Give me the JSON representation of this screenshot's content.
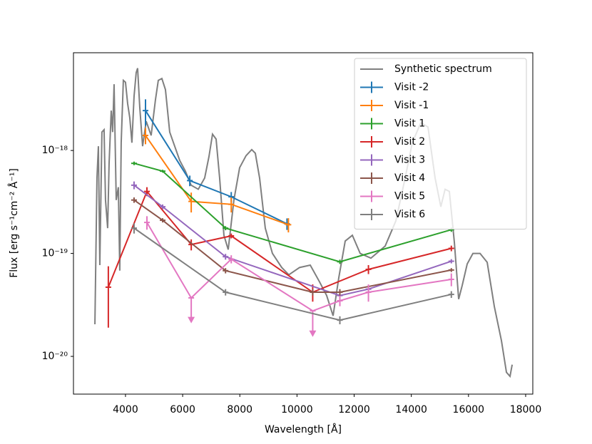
{
  "chart_data": {
    "type": "line",
    "x_label": "Wavelength [Å]",
    "y_label": "Flux [erg s⁻¹cm⁻² Å⁻¹]",
    "xlim": [
      2180,
      18250
    ],
    "ylim": [
      4.3e-21,
      8.9e-18
    ],
    "log_y": true,
    "xticks": [
      4000,
      6000,
      8000,
      10000,
      12000,
      14000,
      16000,
      18000
    ],
    "yticks": [
      {
        "value": 1e-20,
        "label": "10⁻²⁰"
      },
      {
        "value": 1e-19,
        "label": "10⁻¹⁹"
      },
      {
        "value": 1e-18,
        "label": "10⁻¹⁸"
      }
    ],
    "legend_loc": "upper right",
    "spectrum": {
      "name": "Synthetic spectrum",
      "color": "#7f7f7f",
      "x": [
        2930,
        3002,
        3052,
        3102,
        3176,
        3251,
        3301,
        3376,
        3426,
        3501,
        3551,
        3601,
        3676,
        3750,
        3800,
        3850,
        3925,
        4000,
        4075,
        4150,
        4225,
        4300,
        4374,
        4424,
        4499,
        4599,
        4724,
        4898,
        5048,
        5148,
        5273,
        5398,
        5547,
        5722,
        5897,
        6096,
        6296,
        6546,
        6770,
        6920,
        7045,
        7170,
        7294,
        7444,
        7594,
        7793,
        7993,
        8218,
        8417,
        8542,
        8692,
        8891,
        9141,
        9466,
        9715,
        10090,
        10464,
        10788,
        11038,
        11263,
        11462,
        11687,
        11937,
        12211,
        12586,
        13085,
        13459,
        13784,
        14034,
        14333,
        14583,
        14832,
        15032,
        15182,
        15331,
        15506,
        15656,
        15781,
        15955,
        16155,
        16405,
        16654,
        16904,
        17153,
        17328,
        17453,
        17528
      ],
      "values": [
        2.05e-20,
        5.4e-19,
        1.1e-18,
        7.7e-20,
        1.51e-18,
        1.59e-18,
        3.3e-19,
        1.76e-19,
        7.4e-19,
        2.44e-18,
        1.51e-18,
        4.4e-18,
        3.3e-19,
        4.4e-19,
        6.8e-20,
        1.19e-18,
        4.8e-18,
        4.6e-18,
        2.86e-18,
        2.08e-18,
        1.19e-18,
        3.36e-18,
        5.7e-18,
        6.3e-18,
        2.64e-18,
        1.1e-18,
        1.92e-18,
        1.4e-18,
        3.1e-18,
        4.8e-18,
        5e-18,
        3.9e-18,
        1.51e-18,
        1.1e-18,
        8e-19,
        6.3e-19,
        4.6e-19,
        4.2e-19,
        5.4e-19,
        8.7e-19,
        1.44e-18,
        1.29e-18,
        5.4e-19,
        1.5e-19,
        1.09e-19,
        3.3e-19,
        6.8e-19,
        8.9e-19,
        1.02e-18,
        9.4e-19,
        5.4e-19,
        1.76e-19,
        1e-19,
        7.3e-20,
        6.2e-20,
        7.3e-20,
        7.7e-20,
        5.3e-20,
        3.9e-20,
        2.48e-20,
        5.8e-20,
        1.32e-19,
        1.5e-19,
        1e-19,
        9e-20,
        1.18e-19,
        2.07e-19,
        5.4e-19,
        1.19e-18,
        1.86e-18,
        1.69e-18,
        5.4e-19,
        2.84e-19,
        4.2e-19,
        4e-19,
        1.28e-19,
        3.6e-20,
        4.9e-20,
        7.9e-20,
        1e-19,
        1e-19,
        8.2e-20,
        3.05e-20,
        1.42e-20,
        7e-21,
        6.4e-21,
        8.3e-21
      ]
    },
    "series": [
      {
        "name": "Visit -2",
        "color": "#1f77b4",
        "xerr": 100,
        "x": [
          4700,
          6250,
          7700,
          9650
        ],
        "values": [
          2.44e-18,
          5.1e-19,
          3.55e-19,
          1.94e-19
        ],
        "errors": [
          7e-19,
          6e-20,
          4e-20,
          2.5e-20
        ]
      },
      {
        "name": "Visit -1",
        "color": "#ff7f0e",
        "xerr": 100,
        "x": [
          4700,
          6300,
          7700,
          9700
        ],
        "values": [
          1.4e-18,
          3.2e-19,
          3e-19,
          1.9e-19
        ],
        "errors": [
          2.5e-19,
          7e-20,
          5e-20,
          3e-20
        ]
      },
      {
        "name": "Visit 1",
        "color": "#2ca02c",
        "xerr": 100,
        "x": [
          4300,
          5300,
          7500,
          11500,
          15400
        ],
        "values": [
          7.5e-19,
          6.3e-19,
          1.76e-19,
          8.3e-20,
          1.7e-19
        ],
        "errors": [
          3e-20,
          2e-20,
          8e-21,
          4e-21,
          8e-21
        ]
      },
      {
        "name": "Visit 2",
        "color": "#d62728",
        "xerr": 100,
        "x": [
          3400,
          4750,
          6300,
          7700,
          10550,
          12500,
          15400
        ],
        "values": [
          4.7e-20,
          4e-19,
          1.22e-19,
          1.48e-19,
          4.2e-20,
          7e-20,
          1.12e-19
        ],
        "errors": [
          2.8e-20,
          4e-20,
          1.5e-20,
          8e-21,
          8e-21,
          7e-21,
          7e-21
        ]
      },
      {
        "name": "Visit 3",
        "color": "#9467bd",
        "xerr": 100,
        "x": [
          4300,
          5300,
          7500,
          11500,
          12500,
          15400
        ],
        "values": [
          4.6e-19,
          2.84e-19,
          9.3e-20,
          3.9e-20,
          4.5e-20,
          8.4e-20
        ],
        "errors": [
          4e-20,
          1.5e-20,
          6e-21,
          3e-21,
          4e-21,
          4e-21
        ]
      },
      {
        "name": "Visit 4",
        "color": "#8c564b",
        "xerr": 100,
        "x": [
          4300,
          5300,
          7500,
          10550,
          11500,
          15400
        ],
        "values": [
          3.3e-19,
          2.1e-19,
          6.8e-20,
          4.2e-20,
          4.2e-20,
          6.9e-20
        ],
        "errors": [
          2e-20,
          1e-20,
          4e-21,
          3e-21,
          3e-21,
          3e-21
        ]
      },
      {
        "name": "Visit 5",
        "color": "#e377c2",
        "xerr": 100,
        "x": [
          4750,
          6300,
          7700,
          10550,
          11500,
          12500,
          15400
        ],
        "values": [
          2e-19,
          3.7e-20,
          8.8e-20,
          2.77e-20,
          3.47e-20,
          4.2e-20,
          5.6e-20
        ],
        "errors": [
          3e-20,
          1.5e-20,
          8e-21,
          1.15e-20,
          4e-21,
          8e-21,
          8e-21
        ],
        "upper_limits": [
          false,
          true,
          false,
          true,
          false,
          false,
          false
        ]
      },
      {
        "name": "Visit 6",
        "color": "#7f7f7f",
        "xerr": 100,
        "x": [
          4300,
          7500,
          11500,
          15400
        ],
        "values": [
          1.76e-19,
          4.2e-20,
          2.25e-20,
          4e-20
        ],
        "errors": [
          2e-20,
          3e-21,
          2e-21,
          3e-21
        ]
      }
    ]
  }
}
